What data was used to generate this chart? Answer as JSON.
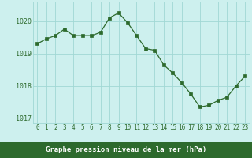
{
  "x": [
    0,
    1,
    2,
    3,
    4,
    5,
    6,
    7,
    8,
    9,
    10,
    11,
    12,
    13,
    14,
    15,
    16,
    17,
    18,
    19,
    20,
    21,
    22,
    23
  ],
  "y": [
    1019.3,
    1019.45,
    1019.55,
    1019.75,
    1019.55,
    1019.55,
    1019.55,
    1019.65,
    1020.1,
    1020.25,
    1019.95,
    1019.55,
    1019.15,
    1019.1,
    1018.65,
    1018.4,
    1018.1,
    1017.75,
    1017.35,
    1017.4,
    1017.55,
    1017.65,
    1018.0,
    1018.3
  ],
  "line_color": "#2d6a2d",
  "marker_color": "#2d6a2d",
  "bg_color": "#cdf0ee",
  "grid_color": "#a0d8d4",
  "xlabel": "Graphe pression niveau de la mer (hPa)",
  "xlabel_color": "#ffffff",
  "xlabel_bg": "#2d6a2d",
  "tick_label_color": "#2d6a2d",
  "ylim_min": 1016.85,
  "ylim_max": 1020.6,
  "yticks": [
    1017,
    1018,
    1019,
    1020
  ],
  "xtick_labels": [
    "0",
    "1",
    "2",
    "3",
    "4",
    "5",
    "6",
    "7",
    "8",
    "9",
    "1011121314151617181920212223"
  ],
  "xtick_positions": [
    0,
    1,
    2,
    3,
    4,
    5,
    6,
    7,
    8,
    9,
    10
  ]
}
